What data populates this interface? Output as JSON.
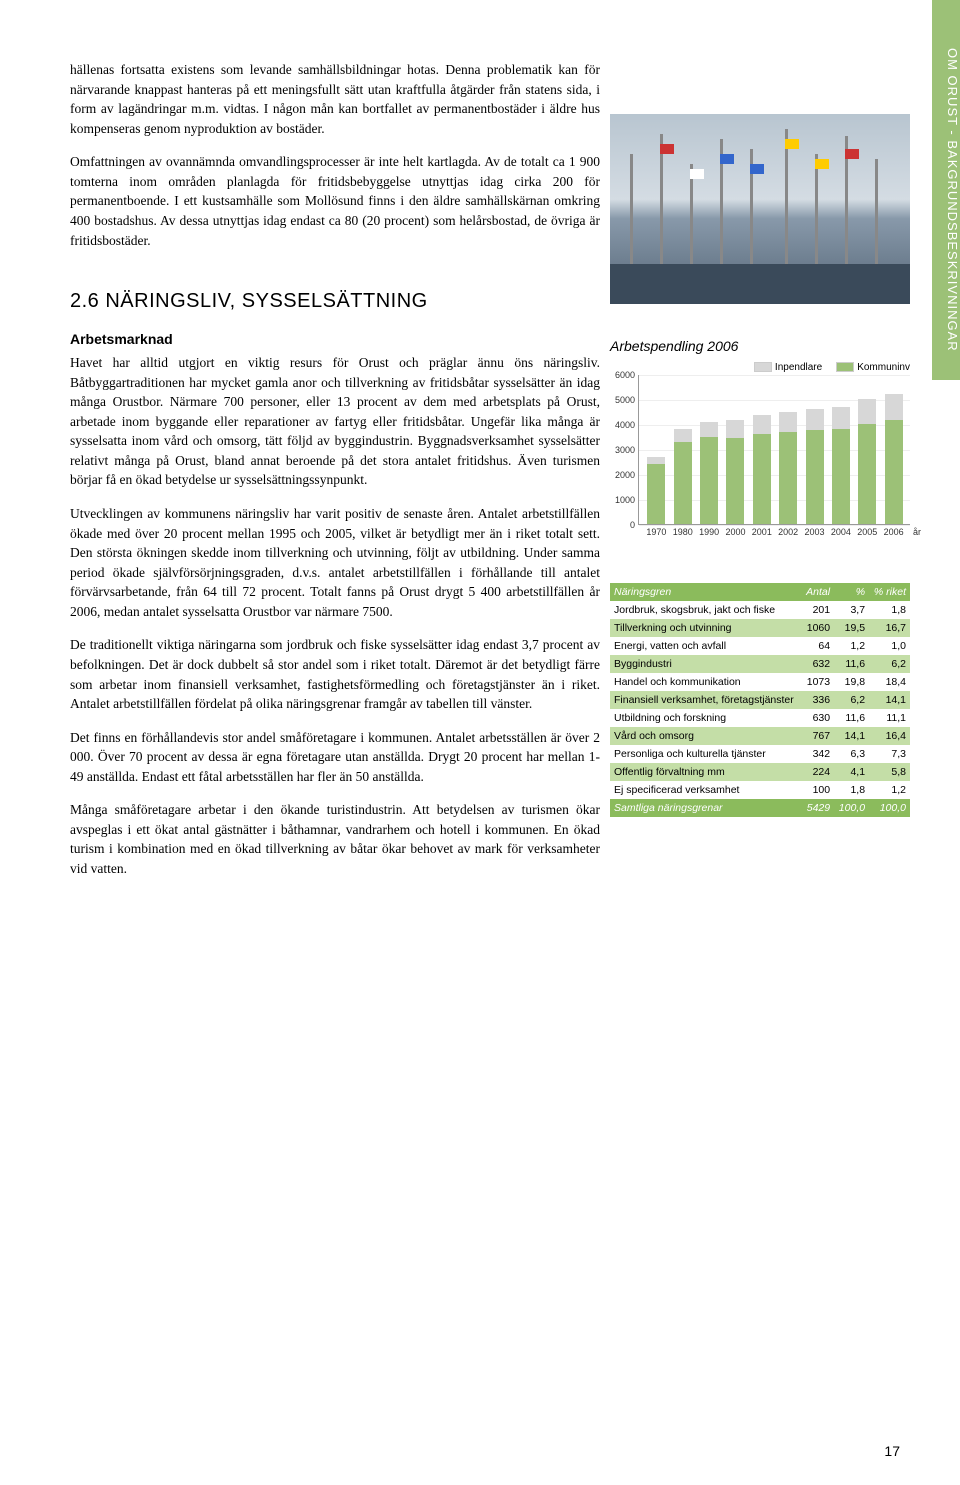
{
  "side_tab": "OM ORUST - BAKGRUNDSBESKRIVNINGAR",
  "intro_p1": "hällenas fortsatta existens som levande samhällsbildningar hotas. Denna problematik kan för närvarande knappast hanteras på ett meningsfullt sätt utan kraftfulla åtgärder från statens sida, i form av lagändringar m.m. vidtas. I någon mån kan bortfallet av permanentbostäder i äldre hus kompenseras genom nyproduktion av bostäder.",
  "intro_p2": "Omfattningen av ovannämnda omvandlingsprocesser är inte helt kartlagda. Av de totalt ca 1 900 tomterna inom områden planlagda för fritidsbebyggelse utnyttjas idag cirka 200 för permanentboende. I ett kustsamhälle som Mollösund finns i den äldre samhällskärnan omkring 400 bostadshus. Av dessa utnyttjas idag endast ca 80 (20 procent) som helårsbostad, de övriga är fritidsbostäder.",
  "section_title": "2.6 NÄRINGSLIV, SYSSELSÄTTNING",
  "sub1_title": "Arbetsmarknad",
  "sub1_p1": "Havet har alltid utgjort en viktig resurs för Orust och präglar ännu öns näringsliv. Båtbyggartraditionen har mycket gamla anor och tillverkning av fritidsbåtar sysselsätter än idag många Orustbor. Närmare 700 personer, eller 13 procent av dem med arbetsplats på Orust, arbetade inom byggande eller reparationer av fartyg eller fritidsbåtar. Ungefär lika många är sysselsatta inom vård och omsorg, tätt följd av byggindustrin. Byggnadsverksamhet sysselsätter relativt många på Orust, bland annat beroende på det stora antalet fritidshus. Även turismen börjar få en ökad betydelse ur sysselsättningssynpunkt.",
  "sub1_p2": "Utvecklingen av kommunens näringsliv har varit positiv de senaste åren. Antalet arbetstillfällen ökade med över 20 procent mellan 1995 och 2005, vilket är betydligt mer än i riket totalt sett. Den största ökningen skedde inom tillverkning och utvinning, följt av utbildning. Under samma period ökade självförsörjningsgraden, d.v.s. antalet arbetstillfällen i förhållande till antalet förvärvsarbetande, från 64 till 72 procent. Totalt fanns på Orust drygt 5 400 arbetstillfällen år 2006, medan antalet sysselsatta Orustbor var närmare 7500.",
  "sub1_p3": "De traditionellt viktiga näringarna som jordbruk och fiske sysselsätter idag endast 3,7 procent av befolkningen. Det är dock dubbelt så stor andel som i riket totalt. Däremot är det betydligt färre som arbetar inom finansiell verksamhet, fastighetsförmedling och företagstjänster än i riket. Antalet arbetstillfällen fördelat på olika näringsgrenar framgår av tabellen till vänster.",
  "sub1_p4": "Det finns en förhållandevis stor andel småföretagare i kommunen. Antalet arbetsställen är över 2 000. Över 70 procent av dessa är egna företagare utan anställda. Drygt 20 procent har mellan 1-49 anställda. Endast ett fåtal arbetsställen har fler än 50 anställda.",
  "sub1_p5": "Många småföretagare arbetar i den ökande turistindustrin. Att betydelsen av turismen ökar avspeglas i ett ökat antal gästnätter i båthamnar, vandrarhem och hotell i kommunen. En ökad turism i kombination med en ökad tillverkning av båtar ökar behovet av mark för verksamheter vid vatten.",
  "chart": {
    "title": "Arbetspendling 2006",
    "legend": [
      {
        "label": "Inpendlare",
        "color": "#d7d7d7"
      },
      {
        "label": "Kommuninv",
        "color": "#9cc177"
      }
    ],
    "ymax": 6000,
    "ytick_step": 1000,
    "background": "#ffffff",
    "axis_color": "#999999",
    "x_suffix": "år",
    "years": [
      "1970",
      "1980",
      "1990",
      "2000",
      "2001",
      "2002",
      "2003",
      "2004",
      "2005",
      "2006"
    ],
    "kommuninv": [
      2400,
      3300,
      3500,
      3450,
      3600,
      3700,
      3750,
      3800,
      4000,
      4150
    ],
    "inpendlare": [
      300,
      500,
      600,
      700,
      750,
      800,
      850,
      900,
      1000,
      1050
    ],
    "bar_main_color": "#9cc177",
    "bar_top_color": "#d7d7d7"
  },
  "table": {
    "headers": [
      "Näringsgren",
      "Antal",
      "%",
      "% riket"
    ],
    "rows": [
      {
        "name": "Jordbruk, skogsbruk, jakt och fiske",
        "antal": "201",
        "pct": "3,7",
        "riket": "1,8",
        "alt": false
      },
      {
        "name": "Tillverkning och utvinning",
        "antal": "1060",
        "pct": "19,5",
        "riket": "16,7",
        "alt": true
      },
      {
        "name": "Energi, vatten och avfall",
        "antal": "64",
        "pct": "1,2",
        "riket": "1,0",
        "alt": false
      },
      {
        "name": "Byggindustri",
        "antal": "632",
        "pct": "11,6",
        "riket": "6,2",
        "alt": true
      },
      {
        "name": "Handel och kommunikation",
        "antal": "1073",
        "pct": "19,8",
        "riket": "18,4",
        "alt": false
      },
      {
        "name": "Finansiell verksamhet, företagstjänster",
        "antal": "336",
        "pct": "6,2",
        "riket": "14,1",
        "alt": true
      },
      {
        "name": "Utbildning och forskning",
        "antal": "630",
        "pct": "11,6",
        "riket": "11,1",
        "alt": false
      },
      {
        "name": "Vård och omsorg",
        "antal": "767",
        "pct": "14,1",
        "riket": "16,4",
        "alt": true
      },
      {
        "name": "Personliga och kulturella tjänster",
        "antal": "342",
        "pct": "6,3",
        "riket": "7,3",
        "alt": false
      },
      {
        "name": "Offentlig förvaltning mm",
        "antal": "224",
        "pct": "4,1",
        "riket": "5,8",
        "alt": true
      },
      {
        "name": "Ej specificerad verksamhet",
        "antal": "100",
        "pct": "1,8",
        "riket": "1,2",
        "alt": false
      }
    ],
    "total": {
      "name": "Samtliga näringsgrenar",
      "antal": "5429",
      "pct": "100,0",
      "riket": "100,0"
    }
  },
  "page_number": "17"
}
